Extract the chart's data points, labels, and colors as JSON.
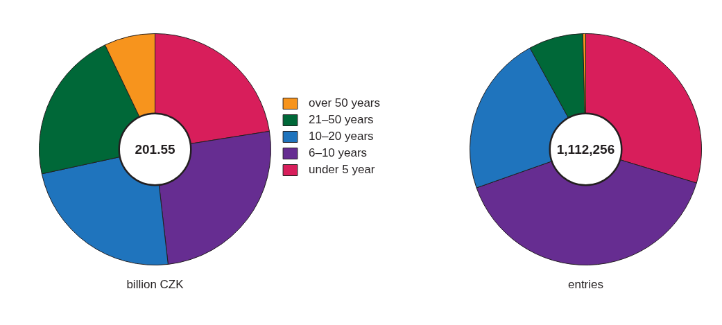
{
  "chart_data": [
    {
      "type": "donut",
      "categories": [
        "under 5 year",
        "6–10 years",
        "10–20 years",
        "21–50 years",
        "over 50 years"
      ],
      "values": [
        22.5,
        25.7,
        23.4,
        21.3,
        7.1
      ],
      "colors": [
        "#d81e5b",
        "#662d91",
        "#1f74bd",
        "#006838",
        "#f7941d"
      ],
      "annotations": [
        "201.55"
      ],
      "xlabel": "billion CZK",
      "legend": "right"
    },
    {
      "type": "donut",
      "categories": [
        null,
        null,
        null,
        null,
        null
      ],
      "values": [
        29.7,
        39.9,
        22.4,
        7.6,
        0.4
      ],
      "colors": [
        "#d81e5b",
        "#662d91",
        "#1f74bd",
        "#006838",
        "#f7941d"
      ],
      "annotations": [
        "1,112,256"
      ],
      "xlabel": "entries"
    }
  ]
}
